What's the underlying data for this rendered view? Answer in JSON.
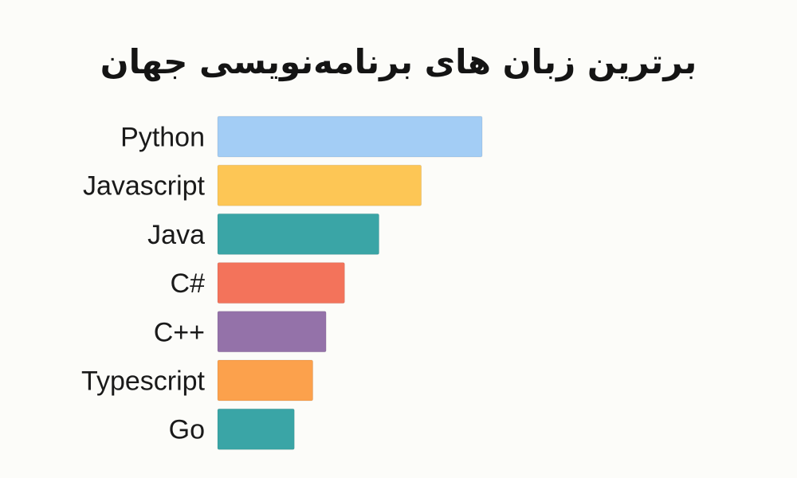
{
  "chart_data": {
    "type": "bar",
    "orientation": "horizontal",
    "title": "برترین زبان های برنامه‌نویسی جهان",
    "xlabel": "",
    "ylabel": "",
    "grid": false,
    "xlim": [
      0,
      100
    ],
    "categories": [
      "Python",
      "Javascript",
      "Java",
      "C#",
      "C++",
      "Typescript",
      "Go"
    ],
    "values": [
      100,
      77,
      61,
      48,
      41,
      36,
      29
    ],
    "colors": [
      "#a3cdf5",
      "#fdc655",
      "#3aa5a6",
      "#f3735b",
      "#9472a9",
      "#fca14c",
      "#3aa5a6"
    ]
  }
}
